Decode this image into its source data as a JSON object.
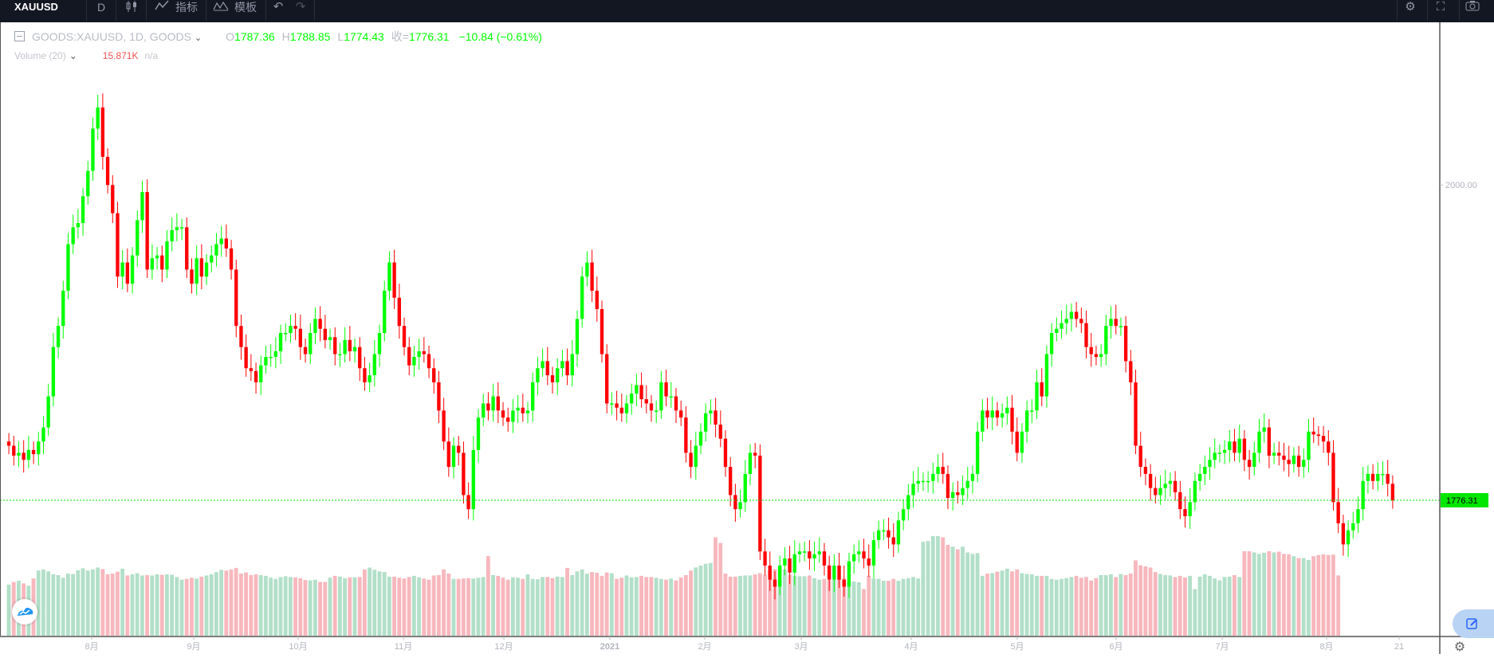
{
  "toolbar": {
    "symbol": "XAUUSD",
    "interval": "D",
    "indicators_label": "指标",
    "templates_label": "模板"
  },
  "legend": {
    "symbol_desc": "GOODS:XAUUSD, 1D, GOODS",
    "o_label": "O",
    "o_value": "1787.36",
    "h_label": "H",
    "h_value": "1788.85",
    "l_label": "L",
    "l_value": "1774.43",
    "c_label": "收=",
    "c_value": "1776.31",
    "change": "−10.84 (−0.61%)"
  },
  "volume_legend": {
    "label": "Volume (20)",
    "value": "15.871K",
    "ma": "n/a"
  },
  "colors": {
    "up": "#00ff00",
    "down": "#ff0000",
    "vol_up": "#b2dfc8",
    "vol_down": "#f7b7bd",
    "price_line": "#00e600",
    "toolbar_bg": "#131722"
  },
  "chart_data": {
    "type": "candlestick",
    "symbol": "GOODS:XAUUSD",
    "interval": "1D",
    "x_ticks": [
      "8月",
      "9月",
      "10月",
      "11月",
      "12月",
      "2021",
      "2月",
      "3月",
      "4月",
      "5月",
      "6月",
      "7月",
      "8月",
      "21"
    ],
    "y_ticks": [
      2000.0
    ],
    "last_price": 1776.31,
    "ohlc_last": {
      "open": 1787.36,
      "high": 1788.85,
      "low": 1774.43,
      "close": 1776.31
    },
    "closes": [
      1815,
      1808,
      1810,
      1805,
      1812,
      1809,
      1818,
      1828,
      1850,
      1885,
      1900,
      1925,
      1958,
      1970,
      1973,
      1992,
      2010,
      2040,
      2055,
      2020,
      2000,
      1980,
      1935,
      1945,
      1930,
      1950,
      1975,
      1995,
      1940,
      1948,
      1950,
      1940,
      1960,
      1968,
      1970,
      1970,
      1940,
      1930,
      1948,
      1935,
      1945,
      1950,
      1958,
      1962,
      1955,
      1940,
      1900,
      1885,
      1870,
      1868,
      1860,
      1872,
      1878,
      1878,
      1882,
      1895,
      1895,
      1900,
      1898,
      1885,
      1880,
      1895,
      1905,
      1898,
      1890,
      1892,
      1880,
      1880,
      1890,
      1882,
      1885,
      1870,
      1860,
      1865,
      1880,
      1895,
      1925,
      1945,
      1920,
      1900,
      1885,
      1872,
      1878,
      1882,
      1880,
      1870,
      1860,
      1840,
      1818,
      1800,
      1815,
      1810,
      1780,
      1770,
      1812,
      1835,
      1845,
      1840,
      1850,
      1840,
      1835,
      1832,
      1840,
      1842,
      1838,
      1840,
      1860,
      1870,
      1875,
      1865,
      1860,
      1870,
      1875,
      1865,
      1880,
      1905,
      1935,
      1945,
      1925,
      1912,
      1880,
      1845,
      1845,
      1842,
      1838,
      1845,
      1852,
      1858,
      1848,
      1845,
      1840,
      1840,
      1860,
      1850,
      1850,
      1840,
      1835,
      1810,
      1800,
      1815,
      1825,
      1838,
      1840,
      1830,
      1820,
      1800,
      1780,
      1770,
      1775,
      1795,
      1810,
      1808,
      1740,
      1730,
      1720,
      1715,
      1730,
      1735,
      1725,
      1738,
      1740,
      1740,
      1735,
      1738,
      1740,
      1730,
      1720,
      1730,
      1720,
      1715,
      1733,
      1738,
      1740,
      1735,
      1730,
      1748,
      1755,
      1755,
      1750,
      1745,
      1762,
      1770,
      1780,
      1788,
      1790,
      1790,
      1790,
      1795,
      1800,
      1795,
      1778,
      1782,
      1780,
      1785,
      1790,
      1795,
      1825,
      1840,
      1835,
      1840,
      1835,
      1838,
      1842,
      1825,
      1810,
      1825,
      1840,
      1840,
      1860,
      1850,
      1880,
      1895,
      1898,
      1902,
      1905,
      1910,
      1905,
      1902,
      1885,
      1880,
      1878,
      1880,
      1900,
      1905,
      1900,
      1900,
      1875,
      1860,
      1815,
      1800,
      1795,
      1785,
      1780,
      1785,
      1788,
      1790,
      1782,
      1770,
      1765,
      1775,
      1790,
      1795,
      1800,
      1805,
      1810,
      1810,
      1812,
      1818,
      1810,
      1820,
      1805,
      1800,
      1810,
      1825,
      1828,
      1808,
      1810,
      1808,
      1805,
      1802,
      1808,
      1800,
      1805,
      1825,
      1823,
      1822,
      1818,
      1810,
      1775,
      1760,
      1745,
      1755,
      1760,
      1770,
      1790,
      1795,
      1790,
      1795,
      1795,
      1788,
      1776.31
    ],
    "volumes": [
      13.5,
      14.2,
      14.5,
      13.8,
      13.2,
      15.1,
      17.2,
      17.5,
      17.0,
      16.2,
      16.0,
      15.3,
      16.4,
      16.3,
      17.3,
      17.8,
      17.2,
      17.5,
      18.0,
      17.6,
      16.2,
      16.4,
      16.9,
      17.7,
      15.9,
      16.2,
      16.5,
      15.9,
      16.0,
      15.9,
      16.2,
      16.1,
      16.2,
      16.1,
      15.5,
      14.8,
      15.0,
      15.3,
      15.1,
      15.6,
      15.9,
      16.2,
      16.8,
      17.4,
      17.2,
      17.5,
      17.9,
      16.4,
      16.7,
      16.0,
      16.2,
      16.0,
      15.8,
      15.3,
      15.0,
      15.5,
      15.7,
      15.5,
      15.4,
      15.2,
      14.7,
      14.6,
      14.8,
      14.2,
      14.2,
      15.3,
      15.8,
      15.6,
      15.2,
      15.4,
      15.4,
      15.5,
      17.5,
      18.0,
      17.4,
      17.0,
      16.8,
      15.6,
      15.6,
      15.3,
      15.1,
      15.5,
      15.8,
      15.4,
      15.1,
      14.8,
      15.9,
      16.0,
      17.5,
      16.4,
      15.0,
      15.0,
      15.1,
      15.2,
      15.1,
      15.3,
      15.5,
      21.0,
      16.0,
      15.8,
      15.3,
      14.8,
      15.4,
      15.3,
      15.0,
      16.2,
      15.0,
      14.9,
      15.5,
      15.5,
      15.2,
      15.6,
      15.5,
      17.9,
      16.0,
      17.0,
      17.5,
      16.4,
      16.8,
      16.6,
      15.8,
      16.7,
      16.5,
      15.0,
      15.3,
      15.9,
      15.4,
      15.5,
      15.8,
      15.5,
      15.5,
      15.3,
      15.0,
      14.8,
      15.1,
      14.6,
      15.4,
      16.0,
      17.2,
      18.0,
      18.5,
      19.0,
      19.2,
      26.0,
      24.5,
      16.4,
      15.6,
      15.6,
      15.8,
      15.9,
      15.9,
      16.2,
      16.5,
      16.1,
      17.0,
      17.6,
      18.1,
      17.5,
      16.1,
      15.8,
      15.7,
      15.7,
      15.9,
      15.2,
      14.8,
      15.0,
      14.7,
      14.8,
      15.2,
      15.1,
      14.5,
      14.3,
      14.1,
      12.3,
      15.8,
      15.1,
      15.0,
      14.5,
      14.5,
      15.0,
      14.5,
      15.0,
      15.2,
      15.5,
      15.1,
      24.8,
      25.0,
      26.3,
      26.3,
      26.0,
      24.0,
      23.5,
      22.8,
      23.5,
      22.0,
      21.6,
      21.8,
      15.8,
      16.4,
      16.5,
      16.9,
      17.2,
      17.7,
      17.0,
      17.5,
      16.5,
      16.3,
      16.2,
      15.8,
      15.8,
      15.8,
      15.0,
      14.8,
      15.0,
      15.2,
      15.5,
      15.8,
      15.3,
      15.5,
      14.6,
      15.2,
      16.0,
      16.0,
      16.2,
      15.5,
      16.3,
      16.0,
      16.4,
      19.9,
      18.6,
      18.3,
      18.0,
      16.8,
      16.3,
      16.0,
      15.9,
      15.5,
      15.8,
      15.4,
      15.8,
      12.3,
      15.6,
      16.2,
      15.8,
      15.1,
      14.6,
      15.5,
      15.6,
      16.0,
      15.5,
      22.3,
      22.3,
      22.0,
      21.6,
      21.9,
      22.3,
      22.0,
      22.2,
      21.6,
      21.5,
      21.0,
      20.5,
      20.5,
      20.0,
      21.0,
      21.3,
      21.5,
      21.3,
      21.4,
      15.9
    ],
    "grid": false
  }
}
